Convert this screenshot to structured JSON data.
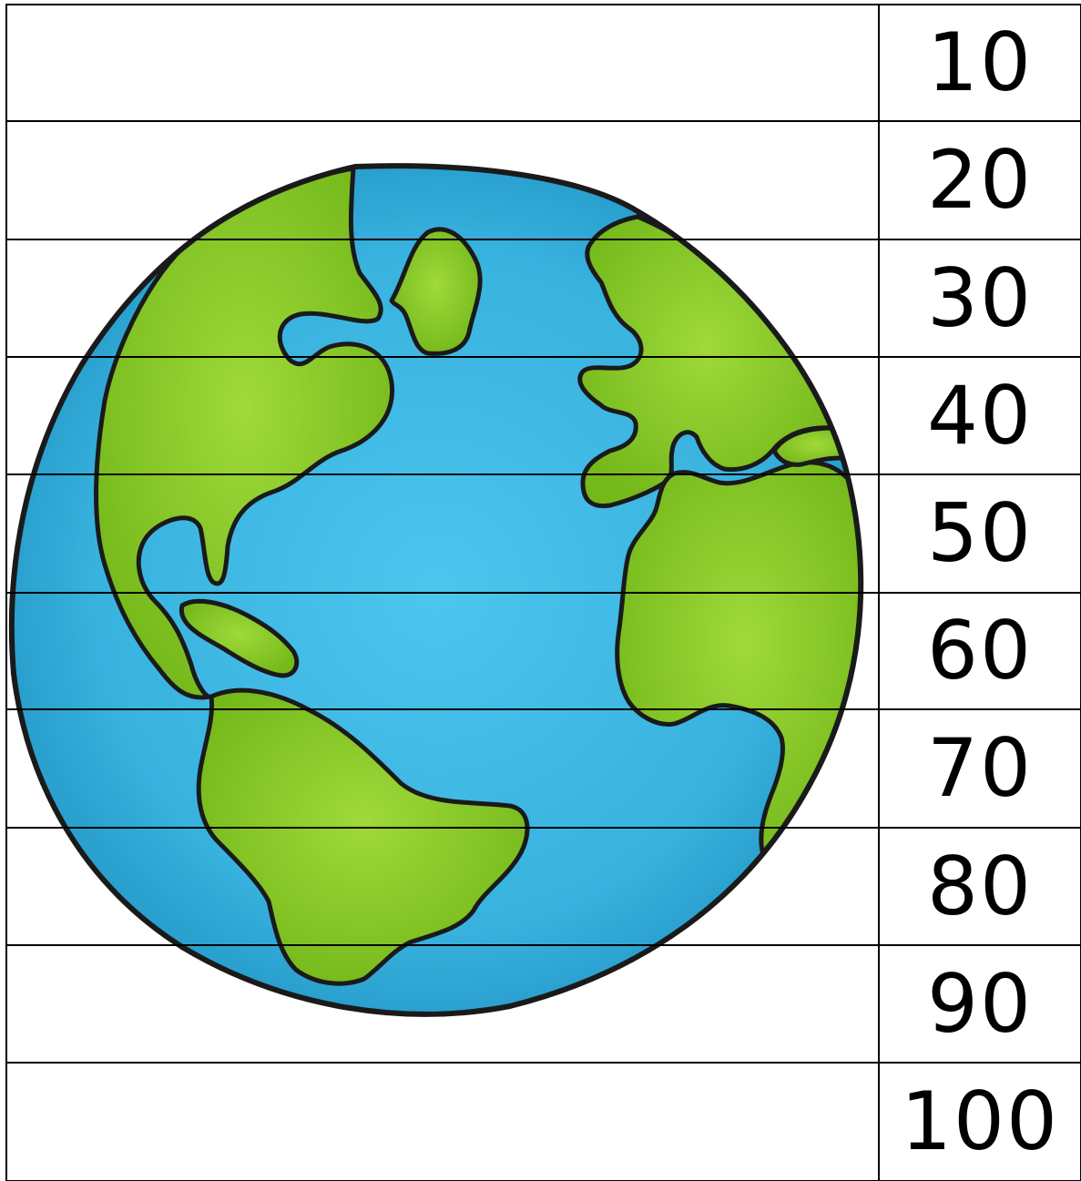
{
  "strip_numbers": [
    "10",
    "20",
    "30",
    "40",
    "50",
    "60",
    "70",
    "80",
    "90",
    "100"
  ],
  "colors": {
    "ocean": "#3cb6e0",
    "land": "#80c21f",
    "outline": "#1a1a1a",
    "grid_line": "#000000"
  }
}
